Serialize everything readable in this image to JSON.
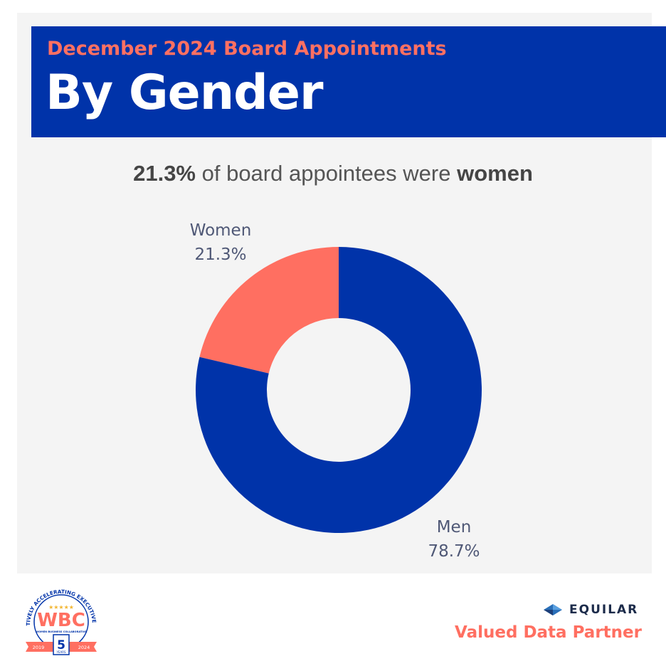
{
  "banner": {
    "kicker": "December 2024 Board Appointments",
    "title": "By Gender"
  },
  "headline": {
    "value": "21.3%",
    "middle": " of board appointees were ",
    "emphasis": "women"
  },
  "chart_data": {
    "type": "pie",
    "style": "donut",
    "categories": [
      "Women",
      "Men"
    ],
    "values": [
      21.3,
      78.7
    ],
    "value_labels": [
      "21.3%",
      "78.7%"
    ],
    "colors": [
      "#ff6f61",
      "#0033a9"
    ],
    "title": "",
    "legend": "none"
  },
  "footer": {
    "equilar_logo_text": "EQUILAR",
    "partner_text": "Valued Data Partner",
    "wbc_logo": {
      "name": "WBC",
      "ring_text": "COLLECTIVELY ACCELERATING EXECUTIVE WOMEN",
      "subtitle": "WOMEN BUSINESS COLLABORATIVE",
      "years_number": "5",
      "years_word": "YEARS",
      "start_year": "2019",
      "end_year": "2024"
    }
  },
  "colors": {
    "brand_blue": "#0033a9",
    "accent_coral": "#ff6f61",
    "panel_bg": "#f4f4f4"
  }
}
